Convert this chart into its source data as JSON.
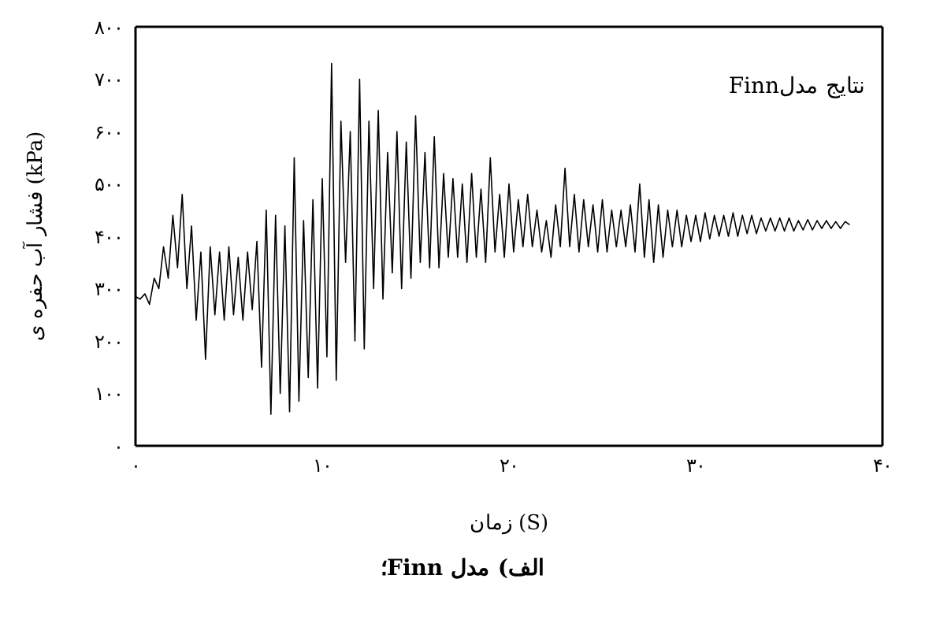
{
  "chart_data": {
    "type": "line",
    "title": "الف) مدل Finn؛",
    "xlabel": "زمان (S)",
    "ylabel": "فشار آب حفره ی (kPa)",
    "annotations": [
      "نتایج مدلFinn"
    ],
    "x": [
      0,
      0.25,
      0.5,
      0.75,
      1,
      1.25,
      1.5,
      1.75,
      2,
      2.25,
      2.5,
      2.75,
      3,
      3.25,
      3.5,
      3.75,
      4,
      4.25,
      4.5,
      4.75,
      5,
      5.25,
      5.5,
      5.75,
      6,
      6.25,
      6.5,
      6.75,
      7,
      7.25,
      7.5,
      7.75,
      8,
      8.25,
      8.5,
      8.75,
      9,
      9.25,
      9.5,
      9.75,
      10,
      10.25,
      10.5,
      10.75,
      11,
      11.25,
      11.5,
      11.75,
      12,
      12.25,
      12.5,
      12.75,
      13,
      13.25,
      13.5,
      13.75,
      14,
      14.25,
      14.5,
      14.75,
      15,
      15.25,
      15.5,
      15.75,
      16,
      16.25,
      16.5,
      16.75,
      17,
      17.25,
      17.5,
      17.75,
      18,
      18.25,
      18.5,
      18.75,
      19,
      19.25,
      19.5,
      19.75,
      20,
      20.25,
      20.5,
      20.75,
      21,
      21.25,
      21.5,
      21.75,
      22,
      22.25,
      22.5,
      22.75,
      23,
      23.25,
      23.5,
      23.75,
      24,
      24.25,
      24.5,
      24.75,
      25,
      25.25,
      25.5,
      25.75,
      26,
      26.25,
      26.5,
      26.75,
      27,
      27.25,
      27.5,
      27.75,
      28,
      28.25,
      28.5,
      28.75,
      29,
      29.25,
      29.5,
      29.75,
      30,
      30.25,
      30.5,
      30.75,
      31,
      31.25,
      31.5,
      31.75,
      32,
      32.25,
      32.5,
      32.75,
      33,
      33.25,
      33.5,
      33.75,
      34,
      34.25,
      34.5,
      34.75,
      35,
      35.25,
      35.5,
      35.75,
      36,
      36.25,
      36.5,
      36.75,
      37,
      37.25,
      37.5,
      37.75,
      38,
      38.25
    ],
    "series": [
      {
        "color": "#000000",
        "values": [
          285,
          280,
          290,
          270,
          320,
          300,
          380,
          320,
          440,
          340,
          480,
          300,
          420,
          240,
          370,
          165,
          380,
          250,
          370,
          240,
          380,
          250,
          360,
          240,
          370,
          260,
          390,
          150,
          450,
          60,
          440,
          100,
          420,
          65,
          550,
          85,
          430,
          130,
          470,
          110,
          510,
          170,
          730,
          125,
          620,
          350,
          600,
          200,
          700,
          185,
          620,
          300,
          640,
          280,
          560,
          330,
          600,
          300,
          580,
          320,
          630,
          350,
          560,
          340,
          590,
          340,
          520,
          360,
          510,
          360,
          500,
          350,
          520,
          360,
          490,
          350,
          550,
          370,
          480,
          360,
          500,
          370,
          470,
          380,
          480,
          380,
          450,
          370,
          430,
          360,
          460,
          380,
          530,
          380,
          480,
          370,
          470,
          380,
          460,
          370,
          470,
          370,
          450,
          380,
          450,
          380,
          460,
          370,
          500,
          360,
          470,
          350,
          460,
          360,
          450,
          380,
          450,
          380,
          440,
          390,
          440,
          390,
          445,
          395,
          440,
          400,
          440,
          400,
          445,
          400,
          440,
          405,
          440,
          405,
          435,
          410,
          435,
          410,
          435,
          410,
          435,
          410,
          430,
          412,
          432,
          412,
          430,
          415,
          430,
          415,
          428,
          415,
          428,
          422
        ]
      }
    ],
    "xlim": [
      0,
      40
    ],
    "xticks": [
      {
        "value": 0,
        "label": "۰"
      },
      {
        "value": 10,
        "label": "۱۰"
      },
      {
        "value": 20,
        "label": "۲۰"
      },
      {
        "value": 30,
        "label": "۳۰"
      },
      {
        "value": 40,
        "label": "۴۰"
      }
    ],
    "ylim": [
      0,
      800
    ],
    "yticks": [
      {
        "value": 0,
        "label": "۰"
      },
      {
        "value": 100,
        "label": "۱۰۰"
      },
      {
        "value": 200,
        "label": "۲۰۰"
      },
      {
        "value": 300,
        "label": "۳۰۰"
      },
      {
        "value": 400,
        "label": "۴۰۰"
      },
      {
        "value": 500,
        "label": "۵۰۰"
      },
      {
        "value": 600,
        "label": "۶۰۰"
      },
      {
        "value": 700,
        "label": "۷۰۰"
      },
      {
        "value": 800,
        "label": "۸۰۰"
      }
    ],
    "marker": "none",
    "line_style": "solid"
  }
}
